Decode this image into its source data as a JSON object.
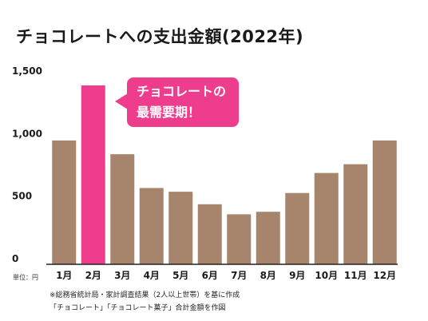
{
  "title": "チョコレートへの支出金額(2022年)",
  "unit_label": "単位：円",
  "callout": {
    "line1": "チョコレートの",
    "line2": "最需要期！"
  },
  "notes": [
    "※総務省統計局・家計調査結果（2人以上世帯）を基に作成",
    "「チョコレート」「チョコレート菓子」合計金額を作図"
  ],
  "colors": {
    "bar": "#a6856c",
    "highlight": "#ef3d8e",
    "axis": "#222222"
  },
  "chart_data": {
    "type": "bar",
    "title": "チョコレートへの支出金額(2022年)",
    "categories": [
      "1月",
      "2月",
      "3月",
      "4月",
      "5月",
      "6月",
      "7月",
      "8月",
      "9月",
      "10月",
      "11月",
      "12月"
    ],
    "values": [
      990,
      1430,
      880,
      610,
      580,
      480,
      400,
      420,
      570,
      730,
      800,
      990
    ],
    "highlight_index": 1,
    "ylim": [
      0,
      1500
    ],
    "yticks": [
      0,
      500,
      1000,
      1500
    ],
    "ytick_labels": [
      "0",
      "500",
      "1,000",
      "1,500"
    ],
    "grid": false,
    "xlabel": "",
    "ylabel": ""
  }
}
